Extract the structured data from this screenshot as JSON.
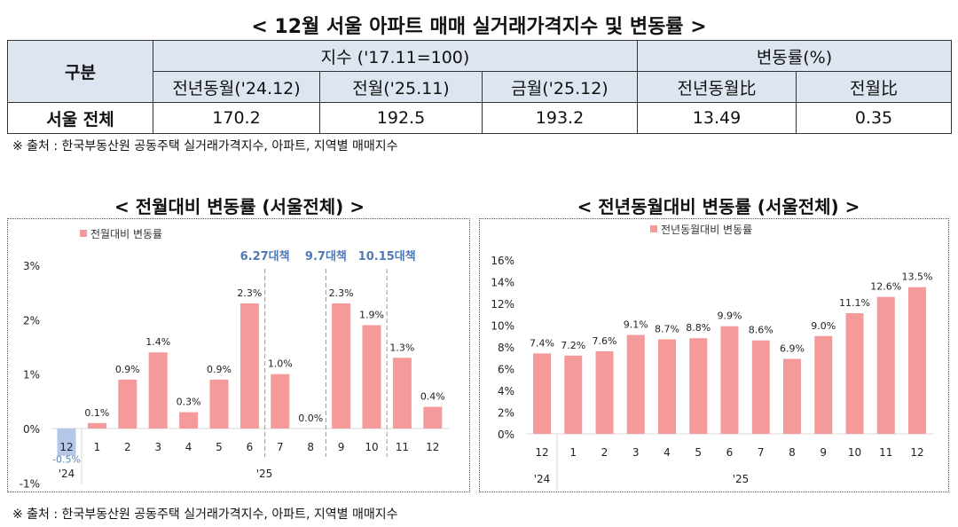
{
  "title": "< 12월 서울 아파트 매매 실거래가격지수 및 변동률 >",
  "table": {
    "col_group": "구분",
    "index_group": "지수 ('17.11=100)",
    "rate_group": "변동률(%)",
    "headers": [
      "전년동월('24.12)",
      "전월('25.11)",
      "금월('25.12)",
      "전년동월比",
      "전월比"
    ],
    "row_label": "서울 전체",
    "values": [
      "170.2",
      "192.5",
      "193.2",
      "13.49",
      "0.35"
    ]
  },
  "source_note": "※ 출처 : 한국부동산원 공동주택 실거래가격지수, 아파트, 지역별 매매지수",
  "chart_titles": [
    "< 전월대비 변동률 (서울전체) >",
    "< 전년동월대비 변동률 (서울전체) >"
  ],
  "chart_data": [
    {
      "type": "bar",
      "legend": "전월대비 변동률",
      "legend_position": "top-left",
      "categories": [
        "12",
        "1",
        "2",
        "3",
        "4",
        "5",
        "6",
        "7",
        "8",
        "9",
        "10",
        "11",
        "12"
      ],
      "year_labels": [
        "'24",
        "'25"
      ],
      "values": [
        -0.5,
        0.1,
        0.9,
        1.4,
        0.3,
        0.9,
        2.3,
        1.0,
        0.0,
        2.3,
        1.9,
        1.3,
        0.4
      ],
      "data_labels": [
        "-0.5%",
        "0.1%",
        "0.9%",
        "1.4%",
        "0.3%",
        "0.9%",
        "2.3%",
        "1.0%",
        "0.0%",
        "2.3%",
        "1.9%",
        "1.3%",
        "0.4%"
      ],
      "yticks": [
        "-1%",
        "0%",
        "1%",
        "2%",
        "3%"
      ],
      "ylim": [
        -1,
        3
      ],
      "annotations": [
        {
          "text": "6.27대책",
          "after_category_index": 6
        },
        {
          "text": "9.7대책",
          "after_category_index": 8
        },
        {
          "text": "10.15대책",
          "after_category_index": 10
        }
      ],
      "colors": {
        "bar": "#f59a9a",
        "highlight": "#b4c7e7",
        "annotation": "#4f7ab3"
      }
    },
    {
      "type": "bar",
      "legend": "전년동월대비 변동률",
      "legend_position": "top-center",
      "categories": [
        "12",
        "1",
        "2",
        "3",
        "4",
        "5",
        "6",
        "7",
        "8",
        "9",
        "10",
        "11",
        "12"
      ],
      "year_labels": [
        "'24",
        "'25"
      ],
      "values": [
        7.4,
        7.2,
        7.6,
        9.1,
        8.7,
        8.8,
        9.9,
        8.6,
        6.9,
        9.0,
        11.1,
        12.6,
        13.5
      ],
      "data_labels": [
        "7.4%",
        "7.2%",
        "7.6%",
        "9.1%",
        "8.7%",
        "8.8%",
        "9.9%",
        "8.6%",
        "6.9%",
        "9.0%",
        "11.1%",
        "12.6%",
        "13.5%"
      ],
      "yticks": [
        "0%",
        "2%",
        "4%",
        "6%",
        "8%",
        "10%",
        "12%",
        "14%",
        "16%"
      ],
      "ylim": [
        0,
        16
      ],
      "colors": {
        "bar": "#f59a9a"
      }
    }
  ]
}
